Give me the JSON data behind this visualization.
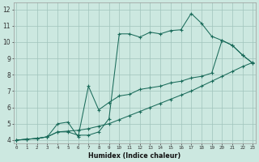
{
  "background_color": "#cce8e0",
  "grid_color": "#a0c4bc",
  "line_color": "#1a6b5a",
  "xlabel": "Humidex (Indice chaleur)",
  "xlim_min": -0.3,
  "xlim_max": 23.3,
  "ylim_min": 3.8,
  "ylim_max": 12.4,
  "xticks": [
    0,
    1,
    2,
    3,
    4,
    5,
    6,
    7,
    8,
    9,
    10,
    11,
    12,
    13,
    14,
    15,
    16,
    17,
    18,
    19,
    20,
    21,
    22,
    23
  ],
  "yticks": [
    4,
    5,
    6,
    7,
    8,
    9,
    10,
    11,
    12
  ],
  "line1_x": [
    0,
    1,
    2,
    3,
    4,
    5,
    6,
    7,
    8,
    9,
    10,
    11,
    12,
    13,
    14,
    15,
    16,
    17,
    18,
    19,
    20,
    21,
    22,
    23
  ],
  "line1_y": [
    4.0,
    4.05,
    4.1,
    4.2,
    4.5,
    4.5,
    4.3,
    4.3,
    4.5,
    5.3,
    10.5,
    10.5,
    10.3,
    10.6,
    10.5,
    10.7,
    10.75,
    11.75,
    11.15,
    10.35,
    10.1,
    9.8,
    9.2,
    8.7
  ],
  "line2_x": [
    0,
    1,
    2,
    3,
    4,
    5,
    6,
    7,
    8,
    9,
    10,
    11,
    12,
    13,
    14,
    15,
    16,
    17,
    18,
    19,
    20,
    21,
    22,
    23
  ],
  "line2_y": [
    4.0,
    4.05,
    4.1,
    4.2,
    4.5,
    4.55,
    4.6,
    4.7,
    4.85,
    5.0,
    5.25,
    5.5,
    5.75,
    6.0,
    6.25,
    6.5,
    6.75,
    7.0,
    7.3,
    7.6,
    7.9,
    8.2,
    8.5,
    8.75
  ],
  "line3_x": [
    0,
    1,
    2,
    3,
    4,
    5,
    6,
    7,
    8,
    9,
    10,
    11,
    12,
    13,
    14,
    15,
    16,
    17,
    18,
    19,
    20,
    21,
    22,
    23
  ],
  "line3_y": [
    4.0,
    4.05,
    4.1,
    4.2,
    5.0,
    5.1,
    4.2,
    7.3,
    5.85,
    6.3,
    6.7,
    6.8,
    7.1,
    7.2,
    7.3,
    7.5,
    7.6,
    7.8,
    7.9,
    8.1,
    10.1,
    9.8,
    9.2,
    8.7
  ]
}
